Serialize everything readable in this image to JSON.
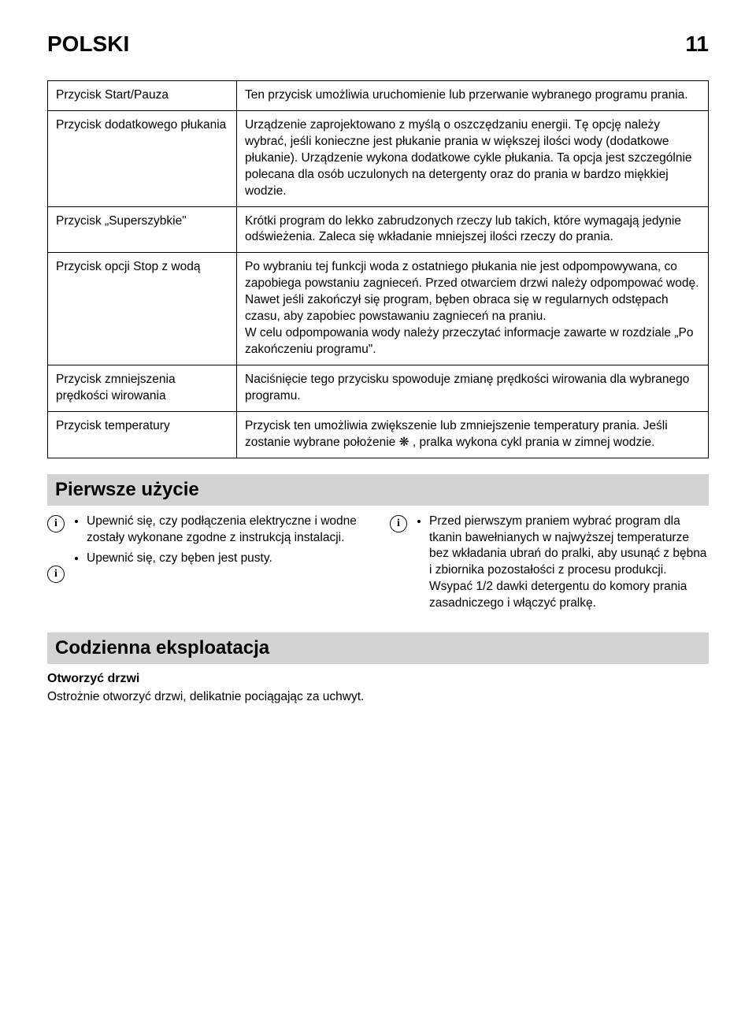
{
  "header": {
    "lang": "POLSKI",
    "page": "11"
  },
  "table": {
    "rows": [
      {
        "l": "Przycisk Start/Pauza",
        "r": "Ten przycisk umożliwia uruchomienie lub przerwanie wybranego programu prania."
      },
      {
        "l": "Przycisk dodatkowego płukania",
        "r": "Urządzenie zaprojektowano z myślą o oszczędzaniu energii. Tę opcję należy wybrać, jeśli konieczne jest płukanie prania w większej ilości wody (dodatkowe płukanie). Urządzenie wykona dodatkowe cykle płukania. Ta opcja jest szczególnie polecana dla osób uczulonych na detergenty oraz do prania w bardzo miękkiej wodzie."
      },
      {
        "l": "Przycisk „Superszybkie\"",
        "r": "Krótki program do lekko zabrudzonych rzeczy lub takich, które wymagają jedynie odświeżenia. Zaleca się wkładanie mniejszej ilości rzeczy do prania."
      },
      {
        "l": "Przycisk opcji Stop z wodą",
        "r": "Po wybraniu tej funkcji woda z ostatniego płukania nie jest odpompowywana, co zapobiega powstaniu zagnieceń. Przed otwarciem drzwi należy odpompować wodę. Nawet jeśli zakończył się program, bęben obraca się w regularnych odstępach czasu, aby zapobiec powstawaniu zagnieceń na praniu.\nW celu odpompowania wody należy przeczytać informacje zawarte w rozdziale „Po zakończeniu programu\"."
      },
      {
        "l": "Przycisk zmniejszenia prędkości wirowania",
        "r": "Naciśnięcie tego przycisku spowoduje zmianę prędkości wirowania dla wybranego programu."
      },
      {
        "l": "Przycisk temperatury",
        "r_pre": "Przycisk ten umożliwia zwiększenie lub zmniejszenie temperatury prania. Jeśli zostanie wybrane położenie ",
        "r_symbol": "❋",
        "r_post": " , pralka wykona cykl prania w zimnej wodzie."
      }
    ]
  },
  "first_use": {
    "heading": "Pierwsze użycie",
    "left": [
      "Upewnić się, czy podłączenia elektryczne i wodne zostały wykonane zgodne z instrukcją instalacji.",
      "Upewnić się, czy bęben jest pusty."
    ],
    "right": [
      "Przed pierwszym praniem wybrać program dla tkanin bawełnianych w najwyższej temperaturze bez wkładania ubrań do pralki, aby usunąć z bębna i zbiornika pozostałości z procesu produkcji. Wsypać 1/2 dawki detergentu do komory prania zasadniczego i włączyć pralkę."
    ]
  },
  "daily": {
    "heading": "Codzienna eksploatacja",
    "sub": "Otworzyć drzwi",
    "text": "Ostrożnie otworzyć drzwi, delikatnie pociągając za uchwyt."
  }
}
